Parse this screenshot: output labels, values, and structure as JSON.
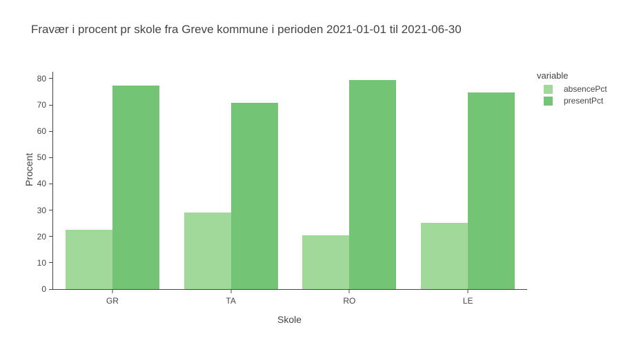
{
  "chart_data": {
    "type": "bar",
    "title": "Fravær i procent pr skole fra Greve kommune i perioden 2021-01-01 til 2021-06-30",
    "xlabel": "Skole",
    "ylabel": "Procent",
    "legend_title": "variable",
    "legend_position": "right",
    "grid": false,
    "categories": [
      "GR",
      "TA",
      "RO",
      "LE"
    ],
    "series": [
      {
        "name": "absencePct",
        "color": "#a1d99b",
        "values": [
          22.6,
          29.1,
          20.5,
          25.2
        ]
      },
      {
        "name": "presentPct",
        "color": "#74c476",
        "values": [
          77.4,
          70.9,
          79.5,
          74.8
        ]
      }
    ],
    "ylim": [
      0,
      82.6
    ],
    "yticks": [
      0,
      10,
      20,
      30,
      40,
      50,
      60,
      70,
      80
    ]
  },
  "colors": {
    "axis": "#444444",
    "text": "#444444"
  }
}
